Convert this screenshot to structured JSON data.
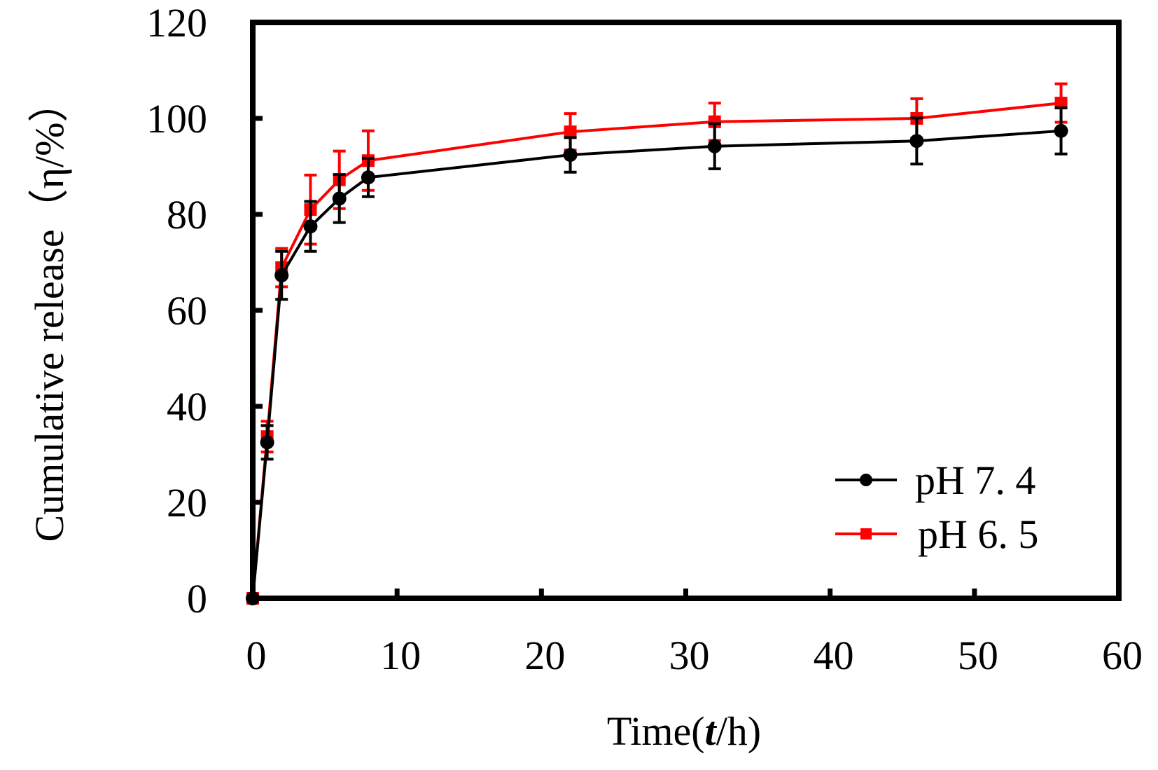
{
  "chart_data": {
    "type": "line",
    "title": "",
    "xlabel": "Time(t/h)",
    "xlabel_parts": [
      "Time(",
      "t",
      "/h)"
    ],
    "ylabel": "Cumulative release（η/%）",
    "xlim": [
      0,
      60
    ],
    "ylim": [
      0,
      120
    ],
    "xticks": [
      0,
      10,
      20,
      30,
      40,
      50,
      60
    ],
    "yticks": [
      0,
      20,
      40,
      60,
      80,
      100,
      120
    ],
    "xtick_labels": [
      "0",
      "10",
      "20",
      "30",
      "40",
      "50",
      "60"
    ],
    "ytick_labels": [
      "0",
      "20",
      "40",
      "60",
      "80",
      "100",
      "120"
    ],
    "grid": false,
    "legend_position": "bottom-right",
    "x": [
      0,
      1,
      2,
      4,
      6,
      8,
      22,
      32,
      46,
      56
    ],
    "series": [
      {
        "name": "pH 7. 4",
        "color": "#000000",
        "marker": "circle",
        "values": [
          0,
          32.5,
          67.3,
          77.5,
          83.3,
          87.7,
          92.4,
          94.2,
          95.3,
          97.4
        ],
        "error": [
          0,
          3.5,
          5.0,
          5.2,
          5.0,
          4.0,
          3.6,
          4.7,
          4.8,
          4.8
        ]
      },
      {
        "name": "pH 6. 5",
        "color": "#ff0000",
        "marker": "square",
        "values": [
          0,
          33.7,
          68.9,
          81.0,
          87.2,
          91.2,
          97.2,
          99.3,
          100.0,
          103.2
        ],
        "error": [
          0,
          3.2,
          4.0,
          7.2,
          6.0,
          6.2,
          3.8,
          3.9,
          4.1,
          4.0
        ]
      }
    ]
  }
}
